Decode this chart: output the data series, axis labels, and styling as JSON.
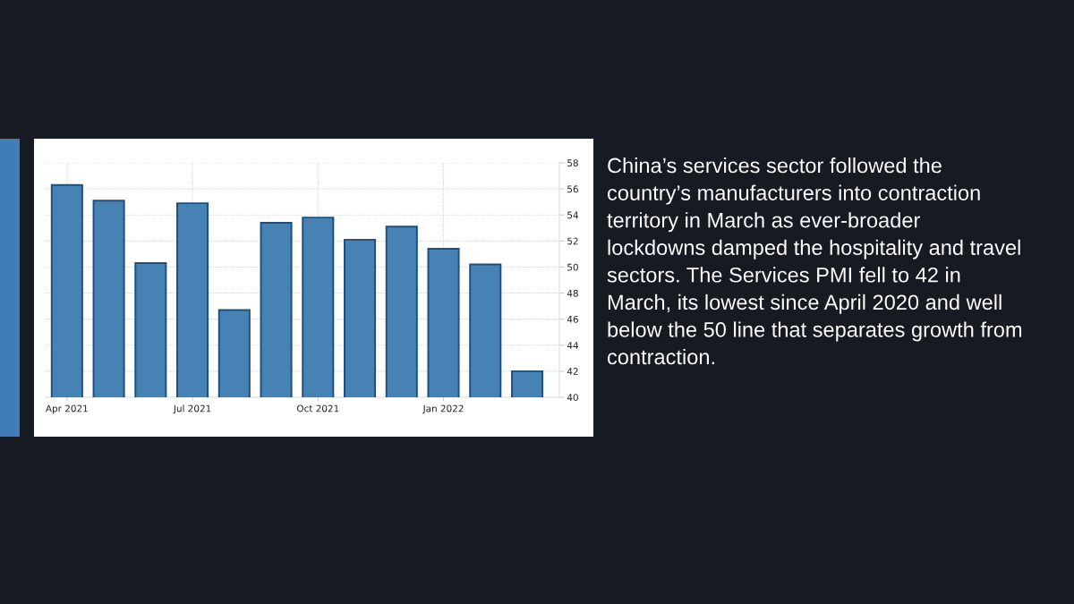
{
  "chart_data": {
    "type": "bar",
    "categories": [
      "Apr 2021",
      null,
      null,
      "Jul 2021",
      null,
      null,
      "Oct 2021",
      null,
      null,
      "Jan 2022",
      null,
      null
    ],
    "values": [
      56.3,
      55.1,
      50.3,
      54.9,
      46.7,
      53.4,
      53.8,
      52.1,
      53.1,
      51.4,
      50.2,
      42.0
    ],
    "color": "#4682b4",
    "ylim": [
      40,
      58
    ],
    "yticks": [
      40,
      42,
      44,
      46,
      48,
      50,
      52,
      54,
      56,
      58
    ],
    "grid": true,
    "annotations": [
      "China’s services sector followed the country’s manufacturers into contraction territory in March as ever-broader lockdowns damped the hospitality and travel sectors. The Services PMI fell to 42 in March, its lowest since April 2020 and well below the 50 line that separates growth from contraction."
    ]
  }
}
